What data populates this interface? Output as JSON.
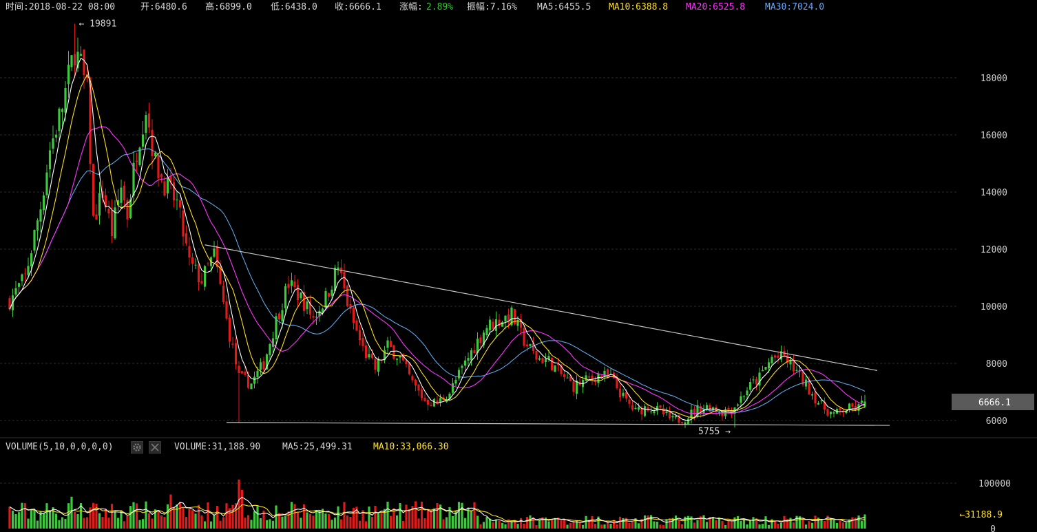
{
  "header": {
    "time": "时间:2018-08-22 08:00",
    "open": "开:6480.6",
    "high": "高:6899.0",
    "low": "低:6438.0",
    "close": "收:6666.1",
    "change_label": "涨幅:",
    "change_value": "2.89%",
    "amplitude": "振幅:7.16%",
    "ma5": "MA5:6455.5",
    "ma10": "MA10:6388.8",
    "ma20": "MA20:6525.8",
    "ma30": "MA30:7024.0"
  },
  "volume_header": {
    "indicator": "VOLUME(5,10,0,0,0,0)",
    "volume": "VOLUME:31,188.90",
    "ma5": "MA5:25,499.31",
    "ma10": "MA10:33,066.30"
  },
  "colors": {
    "up": "#3ec83e",
    "down": "#e01b1b",
    "ma5": "#ffffff",
    "ma10": "#ffe020",
    "ma20": "#ff33ff",
    "ma30": "#5fa8e8",
    "grid": "#2c2c2c",
    "trendline": "#c8c8c8"
  },
  "chart_data": {
    "type": "candlestick",
    "price_axis": {
      "ticks": [
        6000,
        8000,
        10000,
        12000,
        14000,
        16000,
        18000
      ],
      "ylim": [
        5600,
        20300
      ]
    },
    "volume_axis": {
      "ticks": [
        0,
        100000
      ],
      "ylim": [
        0,
        115000
      ]
    },
    "current_price_label": "6666.1",
    "current_volume_label": "←31188.9",
    "max_label": "← 19891",
    "min_label": "5755 →",
    "max_value": 19891,
    "min_value": 5755,
    "anchor_points": [
      [
        0,
        10200
      ],
      [
        5,
        11000
      ],
      [
        10,
        13500
      ],
      [
        13,
        15500
      ],
      [
        17,
        17000
      ],
      [
        21,
        19000
      ],
      [
        23,
        18400
      ],
      [
        25,
        17500
      ],
      [
        27,
        13000
      ],
      [
        30,
        14000
      ],
      [
        33,
        12600
      ],
      [
        36,
        14200
      ],
      [
        38,
        13200
      ],
      [
        41,
        15500
      ],
      [
        44,
        17000
      ],
      [
        47,
        15000
      ],
      [
        50,
        14300
      ],
      [
        54,
        13600
      ],
      [
        58,
        11500
      ],
      [
        62,
        10900
      ],
      [
        66,
        11800
      ],
      [
        70,
        9500
      ],
      [
        74,
        7500
      ],
      [
        78,
        7300
      ],
      [
        82,
        8000
      ],
      [
        86,
        9500
      ],
      [
        90,
        10800
      ],
      [
        94,
        10300
      ],
      [
        98,
        9600
      ],
      [
        102,
        10300
      ],
      [
        106,
        11400
      ],
      [
        110,
        9700
      ],
      [
        114,
        8500
      ],
      [
        118,
        7800
      ],
      [
        122,
        8600
      ],
      [
        126,
        8200
      ],
      [
        130,
        7300
      ],
      [
        134,
        6700
      ],
      [
        138,
        6600
      ],
      [
        142,
        7000
      ],
      [
        146,
        7800
      ],
      [
        150,
        8600
      ],
      [
        154,
        9300
      ],
      [
        158,
        9500
      ],
      [
        162,
        9700
      ],
      [
        166,
        8800
      ],
      [
        170,
        8200
      ],
      [
        174,
        8100
      ],
      [
        178,
        7600
      ],
      [
        182,
        7200
      ],
      [
        186,
        7400
      ],
      [
        190,
        7600
      ],
      [
        194,
        7500
      ],
      [
        198,
        6800
      ],
      [
        202,
        6300
      ],
      [
        206,
        6500
      ],
      [
        210,
        6300
      ],
      [
        214,
        6000
      ],
      [
        218,
        6100
      ],
      [
        222,
        6400
      ],
      [
        226,
        6500
      ],
      [
        230,
        6300
      ],
      [
        234,
        6500
      ],
      [
        238,
        7100
      ],
      [
        242,
        7500
      ],
      [
        246,
        8200
      ],
      [
        250,
        8200
      ],
      [
        254,
        7700
      ],
      [
        258,
        7100
      ],
      [
        262,
        6500
      ],
      [
        266,
        6200
      ],
      [
        270,
        6400
      ],
      [
        274,
        6450
      ],
      [
        276,
        6666
      ]
    ],
    "last_candle": {
      "open": 6480.6,
      "high": 6899.0,
      "low": 6438.0,
      "close": 6666.1,
      "volume": 31188.9
    },
    "moving_averages": [
      "MA5",
      "MA10",
      "MA20",
      "MA30"
    ],
    "trendlines": [
      {
        "from": [
          63,
          12150
        ],
        "to": [
          280,
          7750
        ]
      },
      {
        "from": [
          70,
          5930
        ],
        "to": [
          284,
          5830
        ]
      }
    ]
  }
}
